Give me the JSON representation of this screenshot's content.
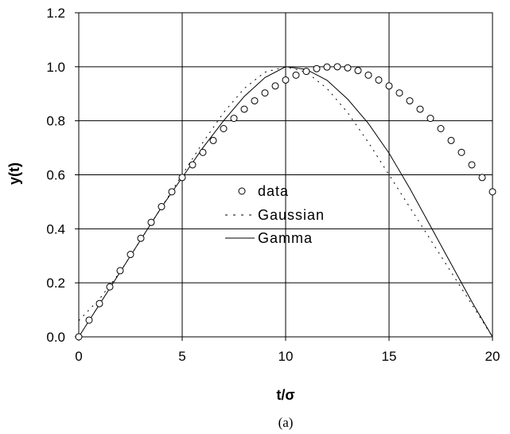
{
  "chart_data": {
    "type": "line",
    "xlabel": "t/σ",
    "ylabel": "y(t)",
    "caption": "(a)",
    "xlim": [
      0,
      20
    ],
    "ylim": [
      0,
      1.2
    ],
    "x_ticks": [
      "0",
      "5",
      "10",
      "15",
      "20"
    ],
    "y_ticks": [
      "0.0",
      "0.2",
      "0.4",
      "0.6",
      "0.8",
      "1.0",
      "1.2"
    ],
    "grid": true,
    "legend_position": "center",
    "series": [
      {
        "name": "data",
        "style": "markers",
        "x": [
          0,
          0.5,
          1.0,
          1.5,
          2.0,
          2.5,
          3.0,
          3.5,
          4.0,
          4.5,
          5.0,
          5.5,
          6.0,
          6.5,
          7.0,
          7.5,
          8.0,
          8.5,
          9.0,
          9.5,
          10.0,
          10.5,
          11.0,
          11.5,
          12.0,
          12.5,
          13.0,
          13.5,
          14.0,
          14.5,
          15.0,
          15.5,
          16.0,
          16.5,
          17.0,
          17.5,
          18.0,
          18.5,
          19.0,
          19.5,
          20.0
        ],
        "y": [
          0.0,
          0.062,
          0.123,
          0.185,
          0.245,
          0.305,
          0.365,
          0.424,
          0.482,
          0.537,
          0.59,
          0.637,
          0.683,
          0.727,
          0.771,
          0.809,
          0.843,
          0.874,
          0.903,
          0.929,
          0.951,
          0.969,
          0.983,
          0.993,
          0.999,
          1.0,
          0.996,
          0.986,
          0.969,
          0.951,
          0.929,
          0.903,
          0.874,
          0.843,
          0.809,
          0.771,
          0.727,
          0.683,
          0.637,
          0.59,
          0.537
        ]
      },
      {
        "name": "Gaussian",
        "style": "dashed",
        "x": [
          0,
          0.5,
          1.0,
          2.0,
          3.0,
          4.0,
          5.0,
          6.0,
          7.0,
          8.0,
          9.0,
          10.0,
          11.0,
          12.0,
          13.0,
          14.0,
          15.0,
          16.0,
          17.0,
          18.0,
          19.0,
          20.0
        ],
        "y": [
          0.06,
          0.1,
          0.14,
          0.24,
          0.36,
          0.48,
          0.6,
          0.72,
          0.83,
          0.92,
          0.98,
          1.0,
          0.98,
          0.92,
          0.83,
          0.72,
          0.6,
          0.48,
          0.36,
          0.24,
          0.12,
          0.0
        ]
      },
      {
        "name": "Gamma",
        "style": "solid",
        "x": [
          0,
          0.5,
          1.0,
          2.0,
          3.0,
          4.0,
          5.0,
          6.0,
          7.0,
          8.0,
          9.0,
          10.0,
          11.0,
          12.0,
          13.0,
          14.0,
          15.0,
          16.0,
          17.0,
          18.0,
          19.0,
          20.0
        ],
        "y": [
          0.0,
          0.06,
          0.12,
          0.24,
          0.36,
          0.48,
          0.59,
          0.7,
          0.8,
          0.89,
          0.96,
          1.0,
          0.99,
          0.95,
          0.88,
          0.79,
          0.68,
          0.55,
          0.41,
          0.27,
          0.13,
          0.0
        ]
      }
    ]
  }
}
